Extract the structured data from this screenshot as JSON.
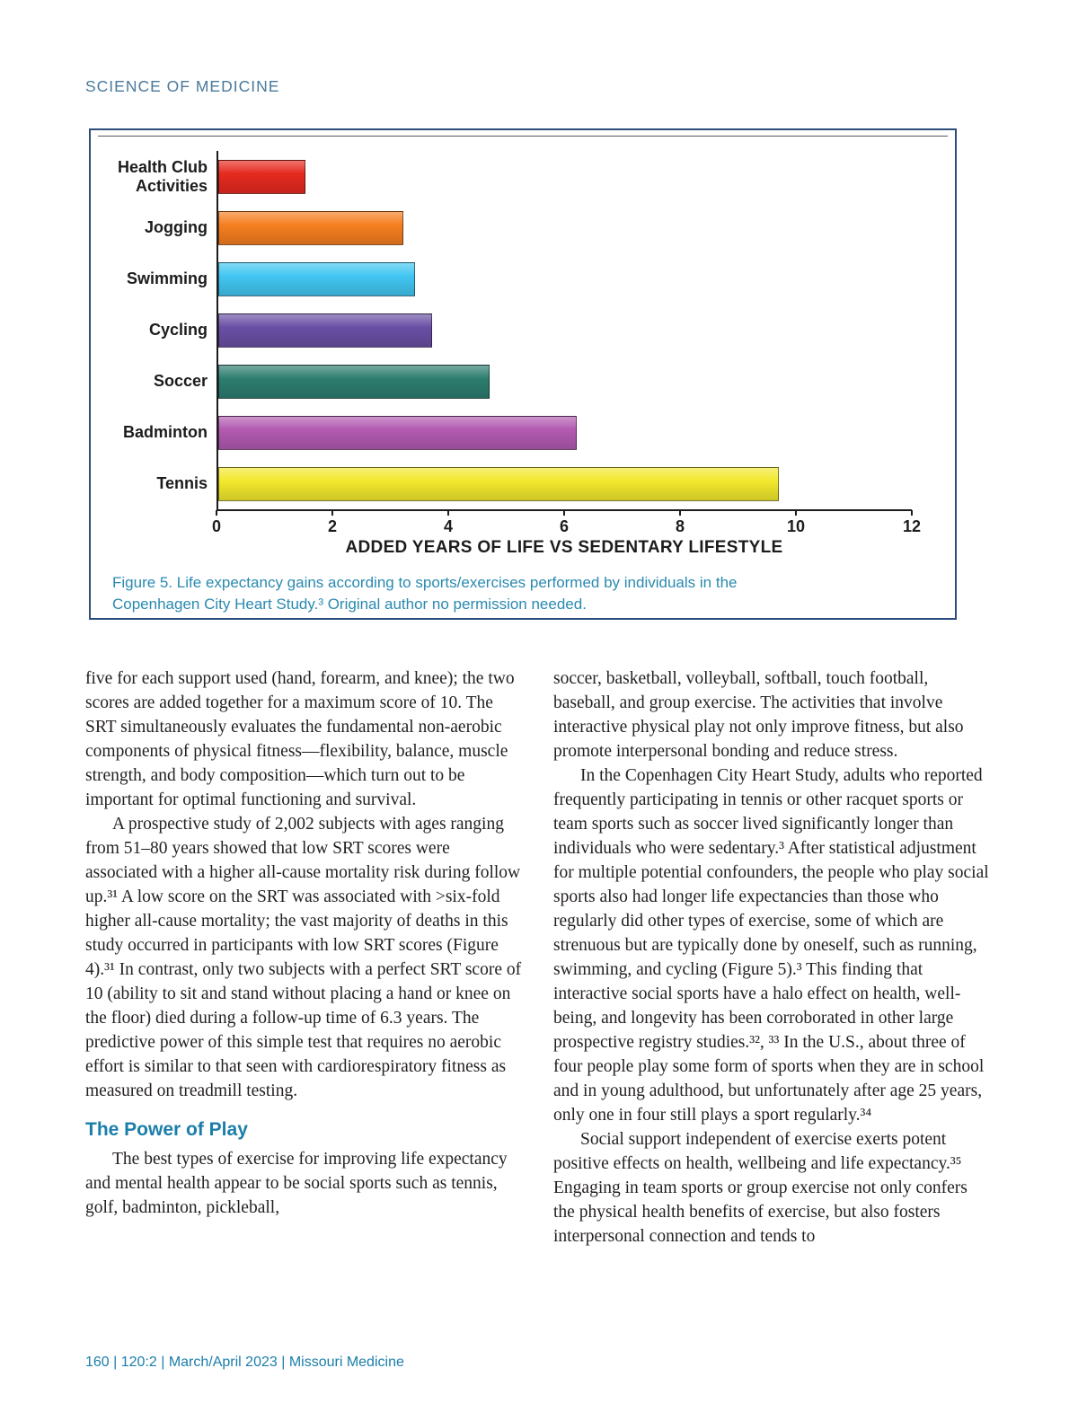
{
  "page": {
    "header": "SCIENCE OF MEDICINE",
    "footer": "160  |  120:2  |  March/April 2023  |  Missouri Medicine"
  },
  "figure": {
    "caption": "Figure 5. Life expectancy gains according to sports/exercises performed by individuals in the Copenhagen City Heart Study.³ Original author no permission needed."
  },
  "chart_data": {
    "type": "bar",
    "orientation": "horizontal",
    "title": "",
    "categories": [
      "Health Club Activities",
      "Jogging",
      "Swimming",
      "Cycling",
      "Soccer",
      "Badminton",
      "Tennis"
    ],
    "values": [
      1.5,
      3.2,
      3.4,
      3.7,
      4.7,
      6.2,
      9.7
    ],
    "colors": [
      "#e62a1f",
      "#f57e20",
      "#41c6f1",
      "#6a4fa4",
      "#2d7d6f",
      "#b25ab1",
      "#f2e82d"
    ],
    "xlabel": "ADDED YEARS OF LIFE VS SEDENTARY LIFESTYLE",
    "ylabel": "",
    "xlim": [
      0,
      12
    ],
    "xticks": [
      0,
      2,
      4,
      6,
      8,
      10,
      12
    ],
    "grid": false,
    "legend": "none"
  },
  "article": {
    "left": {
      "p1": "five for each support used (hand, forearm, and knee); the two scores are added together for a maximum score of 10. The SRT simultaneously evaluates the fundamental non-aerobic components of physical fitness—flexibility, balance, muscle strength, and body composition—which turn out to be important for optimal functioning and survival.",
      "p2": "A prospective study of 2,002 subjects with ages ranging from 51–80 years showed that low SRT scores were associated with a higher all-cause mortality risk during follow up.³¹ A low score on the SRT was associated with >six-fold higher all-cause mortality; the vast majority of deaths in this study occurred in participants with low SRT scores (Figure 4).³¹ In contrast, only two subjects with a perfect SRT score of 10 (ability to sit and stand without placing a hand or knee on the floor) died during a follow-up time of 6.3 years. The predictive power of this simple test that requires no aerobic effort is similar to that seen with cardiorespiratory fitness as measured on treadmill testing.",
      "heading": "The Power of Play",
      "p3": "The best types of exercise for improving life expectancy and mental health appear to be social sports such as tennis, golf, badminton, pickleball,"
    },
    "right": {
      "p1": "soccer, basketball, volleyball, softball, touch football, baseball, and group exercise. The activities that involve interactive physical play not only improve fitness, but also promote interpersonal bonding and reduce stress.",
      "p2": "In the Copenhagen City Heart Study, adults who reported frequently participating in tennis or other racquet sports or team sports such as soccer lived significantly longer than individuals who were sedentary.³ After statistical adjustment for multiple potential confounders, the people who play social sports also had longer life expectancies than those who regularly did other types of exercise, some of which are strenuous but are typically done by oneself, such as running, swimming, and cycling (Figure 5).³ This finding that interactive social sports have a halo effect on health, well-being, and longevity has been corroborated in other large prospective registry studies.³², ³³ In the U.S., about three of four people play some form of sports when they are in school and in young adulthood, but unfortunately after age 25 years, only one in four still plays a sport regularly.³⁴",
      "p3": "Social support independent of exercise exerts potent positive effects on health, wellbeing and life expectancy.³⁵ Engaging in team sports or group exercise not only confers the physical health benefits of exercise, but also fosters interpersonal connection and tends to"
    }
  }
}
